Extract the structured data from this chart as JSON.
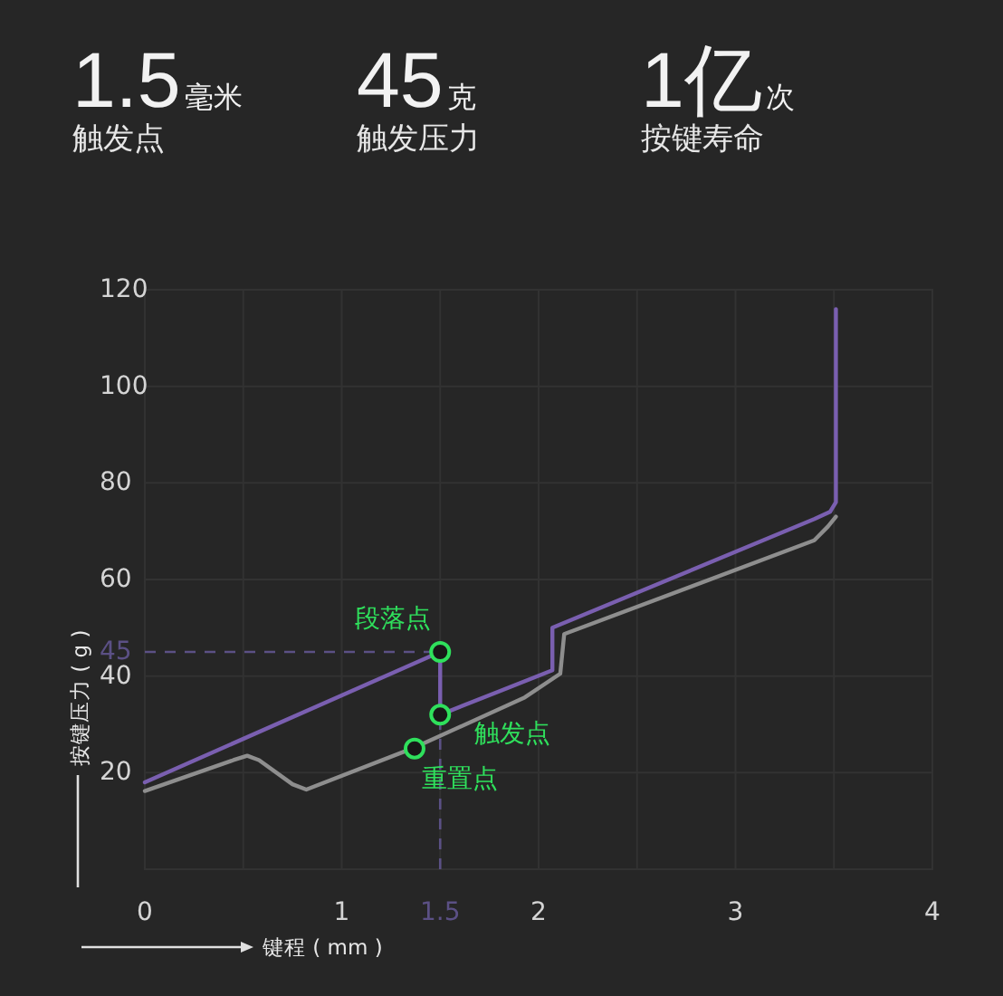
{
  "chart_data": [
    {
      "type": "other",
      "annotations": [
        "1.5",
        "毫米",
        "触发点",
        "45",
        "克",
        "触发压力",
        "1亿",
        "次",
        "按键寿命"
      ]
    },
    {
      "type": "line",
      "xlabel": "键程 ( mm )",
      "ylabel": "按键压力 ( g )",
      "xlim": [
        0,
        4
      ],
      "ylim": [
        0,
        120
      ],
      "xticks": [
        0,
        {
          "value": 0.5,
          "label": null
        },
        1,
        {
          "value": 1.5,
          "label": null
        },
        2,
        {
          "value": 2.5,
          "label": null
        },
        3,
        {
          "value": 3.5,
          "label": null
        },
        4
      ],
      "yticks": [
        20,
        40,
        60,
        80,
        100,
        120
      ],
      "grid": true,
      "ref_lines": [
        {
          "axis": "y",
          "value": 45,
          "label": "45",
          "color": "#5b5085",
          "line_style": "dashed"
        },
        {
          "axis": "x",
          "value": 1.5,
          "label": "1.5",
          "color": "#5b5085",
          "line_style": "dashed"
        }
      ],
      "series": [
        {
          "type": "line",
          "color": "#8e8e8e",
          "x": [
            0,
            0.45,
            0.52,
            0.58,
            0.75,
            0.82,
            1.37,
            1.93,
            2.11,
            2.13,
            3.4,
            3.47,
            3.51
          ],
          "values": [
            16.2,
            22.6,
            23.5,
            22.6,
            17.6,
            16.5,
            25.2,
            35.6,
            40.5,
            48.7,
            68.1,
            71,
            73
          ]
        },
        {
          "type": "line",
          "color": "#7a5fb0",
          "x": [
            0,
            1.5,
            1.5,
            2.07,
            2.07,
            3.4,
            3.48,
            3.51,
            3.51
          ],
          "values": [
            18,
            45,
            32,
            41.2,
            50,
            72.5,
            74,
            76,
            116
          ]
        },
        {
          "type": "scatter",
          "color": "#2fe05c",
          "marker": "circle",
          "x": [
            1.5,
            1.5,
            1.37
          ],
          "values": [
            45,
            32,
            25
          ],
          "value_labels": [
            "段落点",
            "触发点",
            "重置点"
          ]
        }
      ]
    }
  ]
}
